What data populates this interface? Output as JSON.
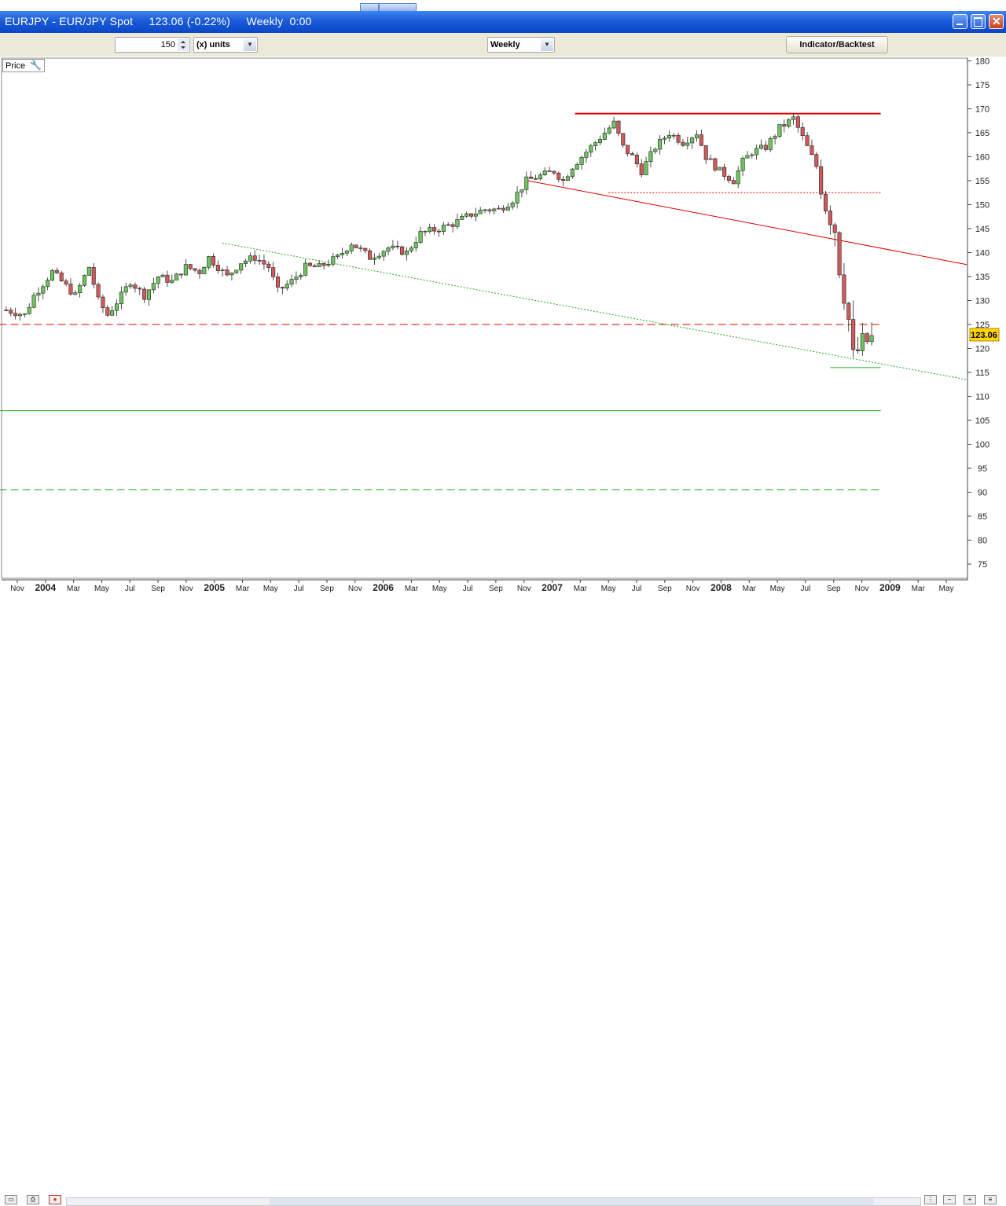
{
  "window": {
    "title": "EURJPY - EUR/JPY Spot     123.06 (-0.22%)     Weekly  0:00"
  },
  "toolbar": {
    "units_value": "150",
    "units_label": "(x) units",
    "period_label": "Weekly",
    "indicator_button": "Indicator/Backtest"
  },
  "panel": {
    "label": "Price"
  },
  "last_price": "123.06",
  "colors": {
    "up": "#6ec45e",
    "down": "#d05a5a",
    "resistance": "#e00000",
    "support": "#22aa22",
    "price_tag": "#ffd700"
  },
  "chart_data": {
    "type": "candlestick",
    "symbol": "EURJPY",
    "interval": "Weekly",
    "last": 123.06,
    "change_pct": -0.22,
    "y_ticks": [
      "180",
      "175",
      "170",
      "165",
      "160",
      "155",
      "150",
      "145",
      "140",
      "135",
      "130",
      "125",
      "120",
      "115",
      "110",
      "105",
      "100",
      "95",
      "90",
      "85",
      "80",
      "75"
    ],
    "ylim": [
      72,
      181
    ],
    "x_ticks": [
      {
        "label": "Nov",
        "bold": false
      },
      {
        "label": "2004",
        "bold": true
      },
      {
        "label": "Mar",
        "bold": false
      },
      {
        "label": "May",
        "bold": false
      },
      {
        "label": "Jul",
        "bold": false
      },
      {
        "label": "Sep",
        "bold": false
      },
      {
        "label": "Nov",
        "bold": false
      },
      {
        "label": "2005",
        "bold": true
      },
      {
        "label": "Mar",
        "bold": false
      },
      {
        "label": "May",
        "bold": false
      },
      {
        "label": "Jul",
        "bold": false
      },
      {
        "label": "Sep",
        "bold": false
      },
      {
        "label": "Nov",
        "bold": false
      },
      {
        "label": "2006",
        "bold": true
      },
      {
        "label": "Mar",
        "bold": false
      },
      {
        "label": "May",
        "bold": false
      },
      {
        "label": "Jul",
        "bold": false
      },
      {
        "label": "Sep",
        "bold": false
      },
      {
        "label": "Nov",
        "bold": false
      },
      {
        "label": "2007",
        "bold": true
      },
      {
        "label": "Mar",
        "bold": false
      },
      {
        "label": "May",
        "bold": false
      },
      {
        "label": "Jul",
        "bold": false
      },
      {
        "label": "Sep",
        "bold": false
      },
      {
        "label": "Nov",
        "bold": false
      },
      {
        "label": "2008",
        "bold": true
      },
      {
        "label": "Mar",
        "bold": false
      },
      {
        "label": "May",
        "bold": false
      },
      {
        "label": "Jul",
        "bold": false
      },
      {
        "label": "Sep",
        "bold": false
      },
      {
        "label": "Nov",
        "bold": false
      },
      {
        "label": "2009",
        "bold": true
      },
      {
        "label": "Mar",
        "bold": false
      },
      {
        "label": "May",
        "bold": false
      }
    ],
    "close_path": [
      [
        0,
        128
      ],
      [
        4,
        127
      ],
      [
        6,
        131
      ],
      [
        10,
        136
      ],
      [
        12,
        134
      ],
      [
        15,
        131
      ],
      [
        18,
        137
      ],
      [
        20,
        130
      ],
      [
        22,
        127
      ],
      [
        25,
        131
      ],
      [
        27,
        134
      ],
      [
        30,
        131
      ],
      [
        33,
        135
      ],
      [
        36,
        134
      ],
      [
        39,
        137
      ],
      [
        42,
        136
      ],
      [
        44,
        139
      ],
      [
        46,
        137
      ],
      [
        48,
        135
      ],
      [
        51,
        138
      ],
      [
        54,
        139
      ],
      [
        57,
        137
      ],
      [
        59,
        132
      ],
      [
        62,
        134
      ],
      [
        65,
        137
      ],
      [
        68,
        137
      ],
      [
        72,
        139
      ],
      [
        75,
        142
      ],
      [
        79,
        139
      ],
      [
        83,
        141
      ],
      [
        87,
        140
      ],
      [
        90,
        144
      ],
      [
        94,
        145
      ],
      [
        97,
        146
      ],
      [
        101,
        148
      ],
      [
        104,
        149
      ],
      [
        107,
        149
      ],
      [
        110,
        151
      ],
      [
        113,
        155
      ],
      [
        116,
        156
      ],
      [
        119,
        157
      ],
      [
        121,
        155
      ],
      [
        123,
        158
      ],
      [
        126,
        161
      ],
      [
        129,
        164
      ],
      [
        132,
        167
      ],
      [
        134,
        162
      ],
      [
        136,
        160
      ],
      [
        138,
        157
      ],
      [
        141,
        162
      ],
      [
        144,
        165
      ],
      [
        147,
        163
      ],
      [
        150,
        165
      ],
      [
        152,
        160
      ],
      [
        155,
        157
      ],
      [
        158,
        155
      ],
      [
        160,
        159
      ],
      [
        162,
        161
      ],
      [
        165,
        162
      ],
      [
        168,
        166
      ],
      [
        171,
        168
      ],
      [
        172,
        166
      ],
      [
        174,
        162
      ],
      [
        176,
        158
      ],
      [
        178,
        150
      ],
      [
        180,
        145
      ],
      [
        181,
        137
      ],
      [
        183,
        126
      ],
      [
        184,
        118
      ],
      [
        186,
        121
      ],
      [
        188,
        122
      ]
    ],
    "lines": [
      {
        "name": "resistance",
        "style": "solid",
        "color": "#e00000",
        "points": [
          [
            2007.18,
            169
          ],
          [
            2009.0,
            169
          ]
        ]
      },
      {
        "name": "descending-trendline",
        "style": "solid",
        "color": "#e00000",
        "points": [
          [
            2006.9,
            155
          ],
          [
            2009.0,
            137.5
          ]
        ]
      },
      {
        "name": "dotted-level",
        "style": "dotted",
        "color": "#e00000",
        "points": [
          [
            2007.38,
            152.5
          ],
          [
            2009.0,
            152.5
          ]
        ]
      },
      {
        "name": "dashed-level",
        "style": "dashed",
        "color": "#e00000",
        "points": [
          [
            2003.75,
            125
          ],
          [
            2009.0,
            125
          ]
        ]
      },
      {
        "name": "green-trendline",
        "style": "dotted",
        "color": "#22aa22",
        "points": [
          [
            2005.08,
            142
          ],
          [
            2009.0,
            113.5
          ]
        ]
      },
      {
        "name": "support-low",
        "style": "solid",
        "color": "#22aa22",
        "points": [
          [
            2008.7,
            116
          ],
          [
            2009.0,
            116
          ]
        ]
      },
      {
        "name": "support-107",
        "style": "solid",
        "color": "#22aa22",
        "points": [
          [
            2003.75,
            107
          ],
          [
            2009.0,
            107
          ]
        ]
      },
      {
        "name": "support-90",
        "style": "dashed",
        "color": "#22aa22",
        "points": [
          [
            2003.75,
            90.5
          ],
          [
            2009.0,
            90.5
          ]
        ]
      }
    ]
  }
}
